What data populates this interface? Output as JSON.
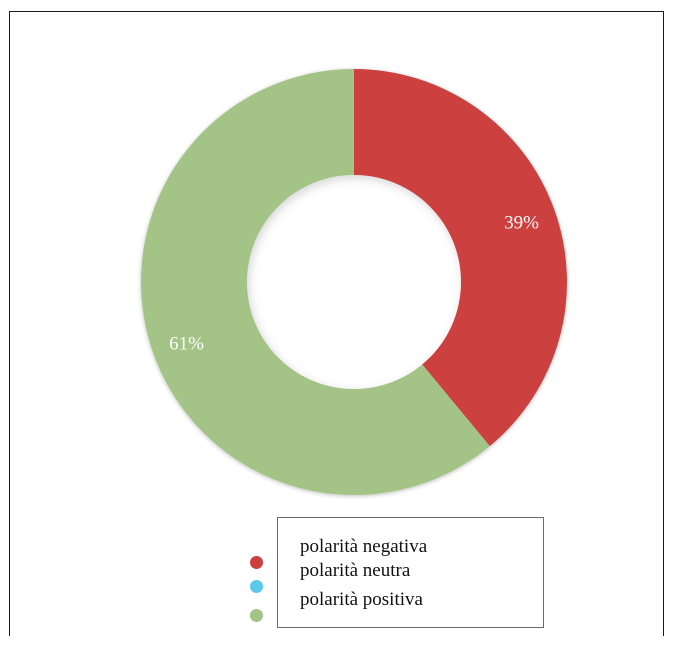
{
  "chart_data": {
    "type": "pie",
    "variant": "donut",
    "categories": [
      "polarità negativa",
      "polarità neutra",
      "polarità positiva"
    ],
    "values": [
      39,
      0,
      61
    ],
    "colors": [
      "#cc4040",
      "#5bc8ec",
      "#a3c486"
    ],
    "data_labels": [
      "39%",
      "",
      "61%"
    ],
    "legend": {
      "placement": "bottom",
      "entries": [
        "polarità negativa",
        "polarità neutra",
        "polarità positiva"
      ]
    }
  }
}
